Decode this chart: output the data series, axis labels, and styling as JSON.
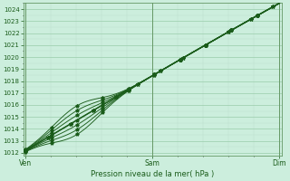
{
  "xlabel": "Pression niveau de la mer( hPa )",
  "bg_color": "#cceedd",
  "plot_bg_color": "#cceedd",
  "grid_major_color": "#99ccaa",
  "grid_minor_color": "#bbddcc",
  "line_color": "#1a5c1a",
  "ylim": [
    1011.8,
    1024.5
  ],
  "ytick_min": 1012,
  "ytick_max": 1024,
  "xtick_labels": [
    "Ven",
    "Sam",
    "Dim"
  ],
  "xtick_positions": [
    0.0,
    0.5,
    1.0
  ]
}
